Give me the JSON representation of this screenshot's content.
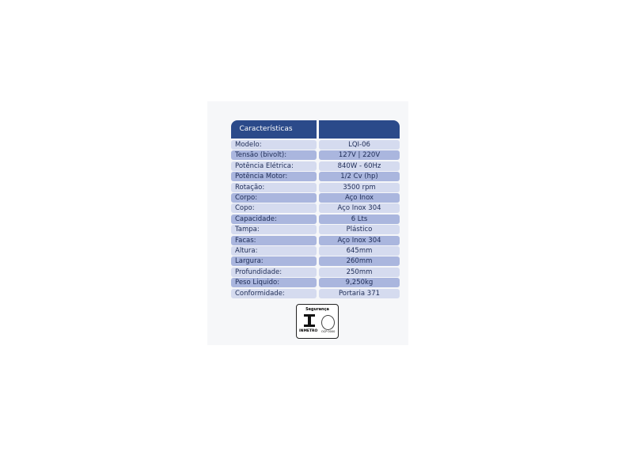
{
  "table": {
    "header": "Características",
    "rows": [
      {
        "label": "Modelo:",
        "value": "LQI-06"
      },
      {
        "label": "Tensão (bivolt):",
        "value": "127V | 220V"
      },
      {
        "label": "Potência Elétrica:",
        "value": "840W - 60Hz"
      },
      {
        "label": "Potência Motor:",
        "value": "1/2 Cv (hp)"
      },
      {
        "label": "Rotação:",
        "value": "3500 rpm"
      },
      {
        "label": "Corpo:",
        "value": "Aço Inox"
      },
      {
        "label": "Copo:",
        "value": "Aço Inox 304"
      },
      {
        "label": "Capacidade:",
        "value": "6 Lts"
      },
      {
        "label": "Tampa:",
        "value": "Plástico"
      },
      {
        "label": "Facas:",
        "value": "Aço Inox 304"
      },
      {
        "label": "Altura:",
        "value": "645mm"
      },
      {
        "label": "Largura:",
        "value": "260mm"
      },
      {
        "label": "Profundidade:",
        "value": "250mm"
      },
      {
        "label": "Peso Liquido:",
        "value": "9,250kg"
      },
      {
        "label": "Conformidade:",
        "value": "Portaria 371"
      }
    ]
  },
  "certification": {
    "title": "Segurança",
    "brand": "INMETRO",
    "seal_caption": "OCP 0000"
  },
  "colors": {
    "header": "#2b4a8a",
    "row_light": "#d5dbef",
    "row_dark": "#aab6de"
  }
}
